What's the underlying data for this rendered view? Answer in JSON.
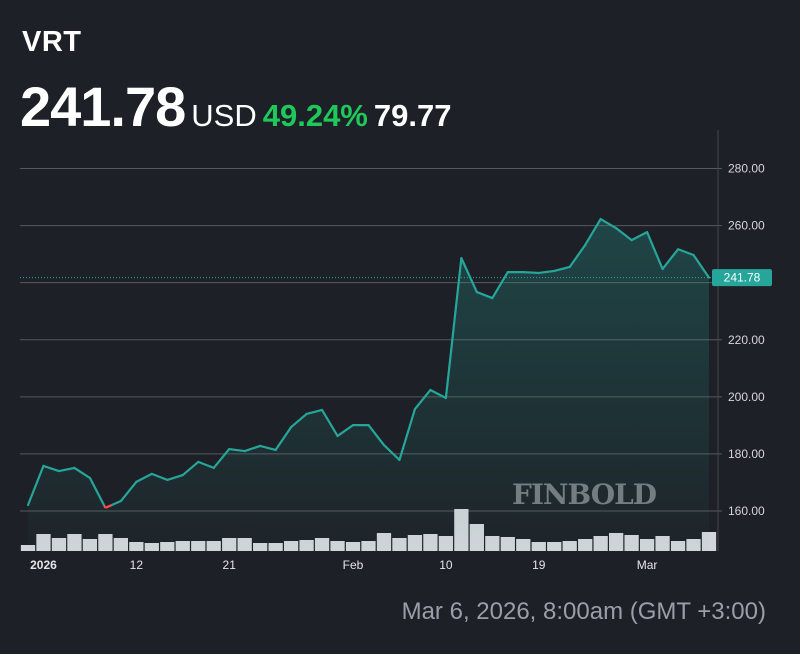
{
  "header": {
    "ticker": "VRT",
    "price": "241.78",
    "currency": "USD",
    "change_percent": "49.24%",
    "change_value": "79.77"
  },
  "footer": {
    "timestamp": "Mar 6, 2026, 8:00am (GMT +3:00)"
  },
  "colors": {
    "background": "#1d2026",
    "line": "#26a69a",
    "line_below_start": "#ef5350",
    "positive": "#1ec85a",
    "volume": "#d4d5da",
    "grid": "#55585e"
  },
  "watermark": "FINBOLD",
  "chart_data": {
    "type": "area",
    "ylim": [
      150,
      290
    ],
    "y_ticks": [
      "160.00",
      "180.00",
      "200.00",
      "220.00",
      "240.00",
      "260.00",
      "280.00"
    ],
    "y_tick_values": [
      160,
      180,
      200,
      220,
      240,
      260,
      280
    ],
    "y_tick_labels_shown": [
      "160.00",
      "180.00",
      "200.00",
      "220.00",
      "260.00",
      "280.00"
    ],
    "grid": true,
    "last_value_label": "241.78",
    "x_ticks": [
      {
        "label": "2026",
        "index": 1
      },
      {
        "label": "12",
        "index": 7
      },
      {
        "label": "21",
        "index": 13
      },
      {
        "label": "Feb",
        "index": 21
      },
      {
        "label": "10",
        "index": 27
      },
      {
        "label": "19",
        "index": 33
      },
      {
        "label": "Mar",
        "index": 40
      }
    ],
    "values": [
      162.1,
      175.8,
      174.0,
      175.1,
      171.6,
      161.1,
      163.5,
      170.2,
      173.0,
      170.9,
      172.6,
      177.2,
      175.1,
      181.7,
      181.0,
      182.8,
      181.4,
      189.4,
      194.0,
      195.4,
      186.3,
      190.1,
      190.1,
      183.1,
      177.9,
      195.7,
      202.4,
      199.6,
      248.6,
      236.7,
      234.6,
      243.7,
      243.7,
      243.4,
      244.1,
      245.5,
      253.2,
      262.3,
      259.1,
      254.9,
      257.7,
      244.8,
      251.7,
      249.7,
      241.78
    ],
    "volume_relative": [
      6,
      17,
      13,
      17,
      12,
      17,
      13,
      9,
      8,
      9,
      10,
      10,
      10,
      13,
      13,
      8,
      8,
      10,
      11,
      13,
      10,
      9,
      10,
      18,
      13,
      16,
      17,
      15,
      42,
      27,
      15,
      14,
      12,
      9,
      9,
      10,
      12,
      15,
      18,
      16,
      12,
      15,
      10,
      12,
      19
    ]
  }
}
